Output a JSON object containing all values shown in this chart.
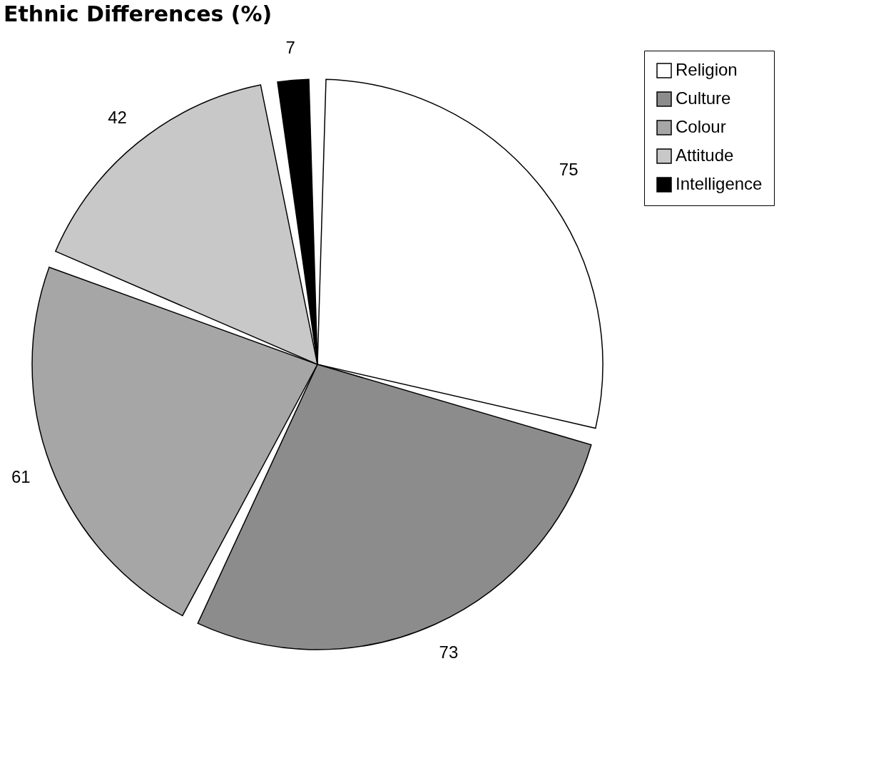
{
  "chart_data": {
    "type": "pie",
    "title": "Ethnic Differences (%)",
    "categories": [
      "Religion",
      "Culture",
      "Colour",
      "Attitude",
      "Intelligence"
    ],
    "values": [
      75,
      73,
      61,
      42,
      7
    ],
    "colors": [
      "#ffffff",
      "#8c8c8c",
      "#a6a6a6",
      "#c8c8c8",
      "#000000"
    ],
    "data_labels": true,
    "legend": "right"
  }
}
